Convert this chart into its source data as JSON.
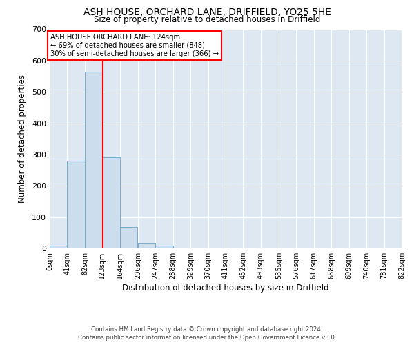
{
  "title1": "ASH HOUSE, ORCHARD LANE, DRIFFIELD, YO25 5HE",
  "title2": "Size of property relative to detached houses in Driffield",
  "xlabel": "Distribution of detached houses by size in Driffield",
  "ylabel": "Number of detached properties",
  "bin_edges": [
    0,
    41,
    82,
    123,
    164,
    206,
    247,
    288,
    329,
    370,
    411,
    452,
    493,
    535,
    576,
    617,
    658,
    699,
    740,
    781,
    822
  ],
  "bin_labels": [
    "0sqm",
    "41sqm",
    "82sqm",
    "123sqm",
    "164sqm",
    "206sqm",
    "247sqm",
    "288sqm",
    "329sqm",
    "370sqm",
    "411sqm",
    "452sqm",
    "493sqm",
    "535sqm",
    "576sqm",
    "617sqm",
    "658sqm",
    "699sqm",
    "740sqm",
    "781sqm",
    "822sqm"
  ],
  "bar_heights": [
    8,
    280,
    565,
    290,
    68,
    17,
    9,
    0,
    0,
    0,
    0,
    0,
    0,
    0,
    0,
    0,
    0,
    0,
    0,
    0
  ],
  "bar_color": "#ccdded",
  "bar_edge_color": "#7aaccb",
  "vline_x": 124,
  "vline_color": "red",
  "ylim": [
    0,
    700
  ],
  "yticks": [
    0,
    100,
    200,
    300,
    400,
    500,
    600,
    700
  ],
  "annotation_title": "ASH HOUSE ORCHARD LANE: 124sqm",
  "annotation_line2": "← 69% of detached houses are smaller (848)",
  "annotation_line3": "30% of semi-detached houses are larger (366) →",
  "annotation_box_color": "white",
  "annotation_box_edge_color": "red",
  "footer1": "Contains HM Land Registry data © Crown copyright and database right 2024.",
  "footer2": "Contains public sector information licensed under the Open Government Licence v3.0.",
  "background_color": "#dde8f2",
  "grid_color": "white"
}
